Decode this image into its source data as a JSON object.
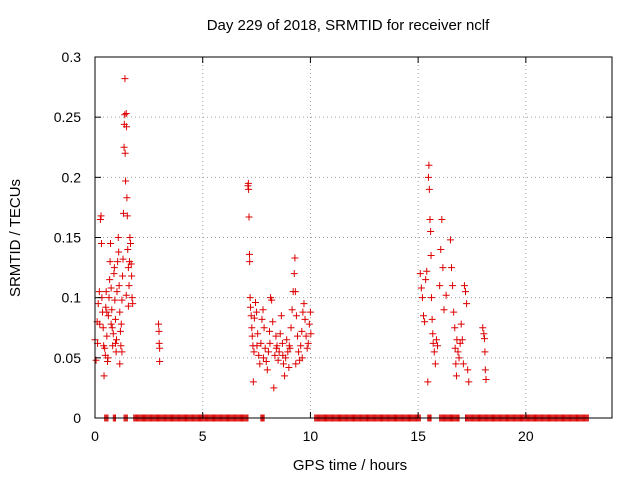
{
  "chart_data": {
    "type": "scatter",
    "title": "Day 229 of 2018, SRMTID for receiver nclf",
    "xlabel": "GPS time / hours",
    "ylabel": "SRMTID / TECUs",
    "xlim": [
      0,
      24
    ],
    "ylim": [
      0,
      0.3
    ],
    "x_ticks": [
      0,
      5,
      10,
      15,
      20
    ],
    "x_tick_labels": [
      "0",
      "5",
      "10",
      "15",
      "20"
    ],
    "y_ticks": [
      0,
      0.05,
      0.1,
      0.15,
      0.2,
      0.25,
      0.3
    ],
    "y_tick_labels": [
      "0",
      "0.05",
      "0.1",
      "0.15",
      "0.2",
      "0.25",
      "0.3"
    ],
    "grid": true,
    "marker": "plus",
    "marker_color": "#dd0000",
    "zero_value_ranges": [
      [
        0.45,
        0.6
      ],
      [
        0.85,
        0.95
      ],
      [
        1.35,
        1.5
      ],
      [
        1.8,
        7.1
      ],
      [
        7.7,
        7.85
      ],
      [
        10.2,
        15.1
      ],
      [
        15.45,
        15.6
      ],
      [
        16.0,
        16.9
      ],
      [
        17.2,
        22.9
      ]
    ],
    "points": [
      [
        0.0,
        0.065
      ],
      [
        0.05,
        0.048
      ],
      [
        0.1,
        0.08
      ],
      [
        0.12,
        0.062
      ],
      [
        0.15,
        0.095
      ],
      [
        0.2,
        0.105
      ],
      [
        0.22,
        0.078
      ],
      [
        0.25,
        0.165
      ],
      [
        0.28,
        0.168
      ],
      [
        0.3,
        0.145
      ],
      [
        0.32,
        0.1
      ],
      [
        0.35,
        0.088
      ],
      [
        0.38,
        0.075
      ],
      [
        0.4,
        0.06
      ],
      [
        0.42,
        0.035
      ],
      [
        0.45,
        0.058
      ],
      [
        0.48,
        0.052
      ],
      [
        0.5,
        0.092
      ],
      [
        0.52,
        0.105
      ],
      [
        0.55,
        0.068
      ],
      [
        0.58,
        0.047
      ],
      [
        0.6,
        0.05
      ],
      [
        0.62,
        0.085
      ],
      [
        0.65,
        0.1
      ],
      [
        0.68,
        0.115
      ],
      [
        0.7,
        0.13
      ],
      [
        0.72,
        0.145
      ],
      [
        0.75,
        0.108
      ],
      [
        0.78,
        0.09
      ],
      [
        0.8,
        0.075
      ],
      [
        0.82,
        0.06
      ],
      [
        0.85,
        0.07
      ],
      [
        0.88,
        0.12
      ],
      [
        0.9,
        0.125
      ],
      [
        0.92,
        0.098
      ],
      [
        0.95,
        0.082
      ],
      [
        0.98,
        0.055
      ],
      [
        1.0,
        0.065
      ],
      [
        1.02,
        0.105
      ],
      [
        1.05,
        0.13
      ],
      [
        1.08,
        0.15
      ],
      [
        1.1,
        0.138
      ],
      [
        1.12,
        0.11
      ],
      [
        1.15,
        0.088
      ],
      [
        1.18,
        0.072
      ],
      [
        1.2,
        0.06
      ],
      [
        1.22,
        0.078
      ],
      [
        1.25,
        0.098
      ],
      [
        1.28,
        0.118
      ],
      [
        1.3,
        0.132
      ],
      [
        1.32,
        0.17
      ],
      [
        1.35,
        0.225
      ],
      [
        1.36,
        0.244
      ],
      [
        1.38,
        0.252
      ],
      [
        1.39,
        0.282
      ],
      [
        1.4,
        0.22
      ],
      [
        1.42,
        0.197
      ],
      [
        1.45,
        0.253
      ],
      [
        1.46,
        0.242
      ],
      [
        1.48,
        0.183
      ],
      [
        1.5,
        0.168
      ],
      [
        1.52,
        0.14
      ],
      [
        1.55,
        0.125
      ],
      [
        1.58,
        0.11
      ],
      [
        1.6,
        0.13
      ],
      [
        1.62,
        0.15
      ],
      [
        1.65,
        0.145
      ],
      [
        1.68,
        0.128
      ],
      [
        1.7,
        0.118
      ],
      [
        1.72,
        0.1
      ],
      [
        1.75,
        0.095
      ],
      [
        0.55,
        0.088
      ],
      [
        0.75,
        0.078
      ],
      [
        0.95,
        0.062
      ],
      [
        1.15,
        0.045
      ],
      [
        1.25,
        0.055
      ],
      [
        1.45,
        0.102
      ],
      [
        1.55,
        0.093
      ],
      [
        2.95,
        0.078
      ],
      [
        2.97,
        0.072
      ],
      [
        2.98,
        0.062
      ],
      [
        3.0,
        0.058
      ],
      [
        3.0,
        0.047
      ],
      [
        7.1,
        0.193
      ],
      [
        7.12,
        0.195
      ],
      [
        7.13,
        0.19
      ],
      [
        7.15,
        0.167
      ],
      [
        7.17,
        0.136
      ],
      [
        7.18,
        0.13
      ],
      [
        7.2,
        0.1
      ],
      [
        7.22,
        0.092
      ],
      [
        7.25,
        0.085
      ],
      [
        7.28,
        0.075
      ],
      [
        7.3,
        0.068
      ],
      [
        7.33,
        0.06
      ],
      [
        7.35,
        0.03
      ],
      [
        7.38,
        0.055
      ],
      [
        7.4,
        0.083
      ],
      [
        7.45,
        0.096
      ],
      [
        7.5,
        0.088
      ],
      [
        7.55,
        0.07
      ],
      [
        7.6,
        0.052
      ],
      [
        7.65,
        0.045
      ],
      [
        7.7,
        0.062
      ],
      [
        7.75,
        0.082
      ],
      [
        7.8,
        0.09
      ],
      [
        7.85,
        0.075
      ],
      [
        7.9,
        0.058
      ],
      [
        7.95,
        0.047
      ],
      [
        8.0,
        0.04
      ],
      [
        8.05,
        0.055
      ],
      [
        8.1,
        0.072
      ],
      [
        8.15,
        0.1
      ],
      [
        8.2,
        0.098
      ],
      [
        8.25,
        0.08
      ],
      [
        8.3,
        0.025
      ],
      [
        8.35,
        0.052
      ],
      [
        8.4,
        0.068
      ],
      [
        8.45,
        0.06
      ],
      [
        8.5,
        0.048
      ],
      [
        8.55,
        0.055
      ],
      [
        8.6,
        0.07
      ],
      [
        8.65,
        0.085
      ],
      [
        8.7,
        0.062
      ],
      [
        8.75,
        0.045
      ],
      [
        8.8,
        0.035
      ],
      [
        8.85,
        0.05
      ],
      [
        8.9,
        0.065
      ],
      [
        8.95,
        0.055
      ],
      [
        9.0,
        0.042
      ],
      [
        9.05,
        0.058
      ],
      [
        9.1,
        0.075
      ],
      [
        9.15,
        0.09
      ],
      [
        9.2,
        0.105
      ],
      [
        9.25,
        0.12
      ],
      [
        9.28,
        0.133
      ],
      [
        9.3,
        0.105
      ],
      [
        9.35,
        0.085
      ],
      [
        9.4,
        0.068
      ],
      [
        9.45,
        0.055
      ],
      [
        9.5,
        0.048
      ],
      [
        9.55,
        0.06
      ],
      [
        9.6,
        0.072
      ],
      [
        9.65,
        0.088
      ],
      [
        9.7,
        0.095
      ],
      [
        9.75,
        0.082
      ],
      [
        9.8,
        0.068
      ],
      [
        9.85,
        0.058
      ],
      [
        9.9,
        0.062
      ],
      [
        9.95,
        0.078
      ],
      [
        10.0,
        0.088
      ],
      [
        10.02,
        0.07
      ],
      [
        8.12,
        0.062
      ],
      [
        8.42,
        0.058
      ],
      [
        8.72,
        0.052
      ],
      [
        9.02,
        0.06
      ],
      [
        9.32,
        0.045
      ],
      [
        9.62,
        0.05
      ],
      [
        7.82,
        0.05
      ],
      [
        7.52,
        0.06
      ],
      [
        15.1,
        0.12
      ],
      [
        15.15,
        0.108
      ],
      [
        15.2,
        0.1
      ],
      [
        15.25,
        0.085
      ],
      [
        15.3,
        0.08
      ],
      [
        15.35,
        0.115
      ],
      [
        15.4,
        0.122
      ],
      [
        15.45,
        0.03
      ],
      [
        15.48,
        0.2
      ],
      [
        15.5,
        0.21
      ],
      [
        15.52,
        0.19
      ],
      [
        15.55,
        0.165
      ],
      [
        15.58,
        0.155
      ],
      [
        15.6,
        0.135
      ],
      [
        15.62,
        0.1
      ],
      [
        15.65,
        0.082
      ],
      [
        15.68,
        0.07
      ],
      [
        15.7,
        0.062
      ],
      [
        15.75,
        0.055
      ],
      [
        15.8,
        0.045
      ],
      [
        15.85,
        0.065
      ],
      [
        15.9,
        0.06
      ],
      [
        16.0,
        0.11
      ],
      [
        16.05,
        0.14
      ],
      [
        16.1,
        0.165
      ],
      [
        16.15,
        0.125
      ],
      [
        16.2,
        0.09
      ],
      [
        16.3,
        0.102
      ],
      [
        16.5,
        0.148
      ],
      [
        16.55,
        0.125
      ],
      [
        16.6,
        0.11
      ],
      [
        16.7,
        0.075
      ],
      [
        16.72,
        0.058
      ],
      [
        16.75,
        0.045
      ],
      [
        16.78,
        0.035
      ],
      [
        16.8,
        0.065
      ],
      [
        16.85,
        0.055
      ],
      [
        16.9,
        0.05
      ],
      [
        17.0,
        0.078
      ],
      [
        17.05,
        0.065
      ],
      [
        17.1,
        0.045
      ],
      [
        17.15,
        0.11
      ],
      [
        17.2,
        0.105
      ],
      [
        17.25,
        0.095
      ],
      [
        17.3,
        0.04
      ],
      [
        17.35,
        0.03
      ],
      [
        18.0,
        0.075
      ],
      [
        18.05,
        0.07
      ],
      [
        18.08,
        0.066
      ],
      [
        18.1,
        0.055
      ],
      [
        18.12,
        0.04
      ],
      [
        18.15,
        0.032
      ],
      [
        16.95,
        0.062
      ],
      [
        16.65,
        0.088
      ]
    ]
  }
}
